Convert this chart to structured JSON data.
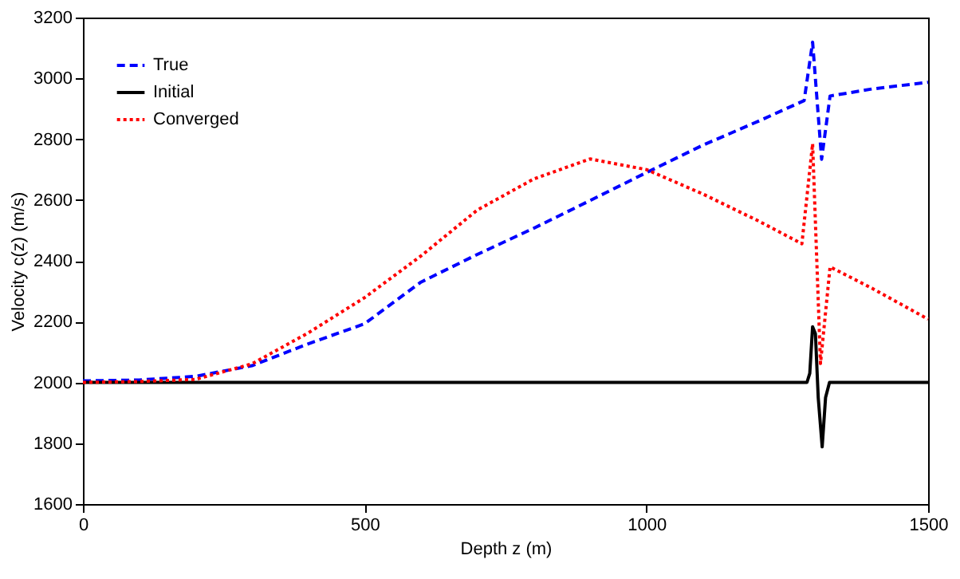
{
  "chart_data": {
    "type": "line",
    "xlabel": "Depth z (m)",
    "ylabel": "Velocity c(z) (m/s)",
    "xlim": [
      0,
      1500
    ],
    "xticks": [
      0,
      500,
      1000,
      1500
    ],
    "ylim": [
      1600,
      3200
    ],
    "yticks": [
      1600,
      1800,
      2000,
      2200,
      2400,
      2600,
      2800,
      3000,
      3200
    ],
    "grid": false,
    "legend": "top left",
    "marker": "none",
    "series": [
      {
        "name": "True",
        "color": "#0000ff",
        "line_style": "dashed",
        "x": [
          0,
          100,
          200,
          300,
          400,
          500,
          600,
          700,
          800,
          900,
          1000,
          1100,
          1200,
          1280,
          1295,
          1311,
          1326,
          1400,
          1500
        ],
        "values": [
          2005,
          2008,
          2020,
          2055,
          2127,
          2193,
          2330,
          2421,
          2507,
          2598,
          2690,
          2780,
          2860,
          2927,
          3119,
          2734,
          2942,
          2965,
          2987
        ]
      },
      {
        "name": "Initial",
        "color": "#000000",
        "line_style": "solid",
        "x": [
          0,
          1285,
          1290,
          1295,
          1300,
          1305,
          1312,
          1318,
          1325,
          1500
        ],
        "values": [
          2000,
          2000,
          2030,
          2183,
          2160,
          1950,
          1788,
          1950,
          2000,
          2000
        ]
      },
      {
        "name": "Converged",
        "color": "#ff0000",
        "line_style": "dotted",
        "x": [
          0,
          100,
          200,
          300,
          400,
          500,
          600,
          700,
          800,
          900,
          1000,
          1100,
          1200,
          1276,
          1295,
          1309,
          1326,
          1400,
          1500
        ],
        "values": [
          2000,
          2003,
          2010,
          2061,
          2163,
          2279,
          2416,
          2567,
          2669,
          2735,
          2700,
          2620,
          2530,
          2456,
          2785,
          2062,
          2380,
          2310,
          2208
        ]
      }
    ]
  }
}
